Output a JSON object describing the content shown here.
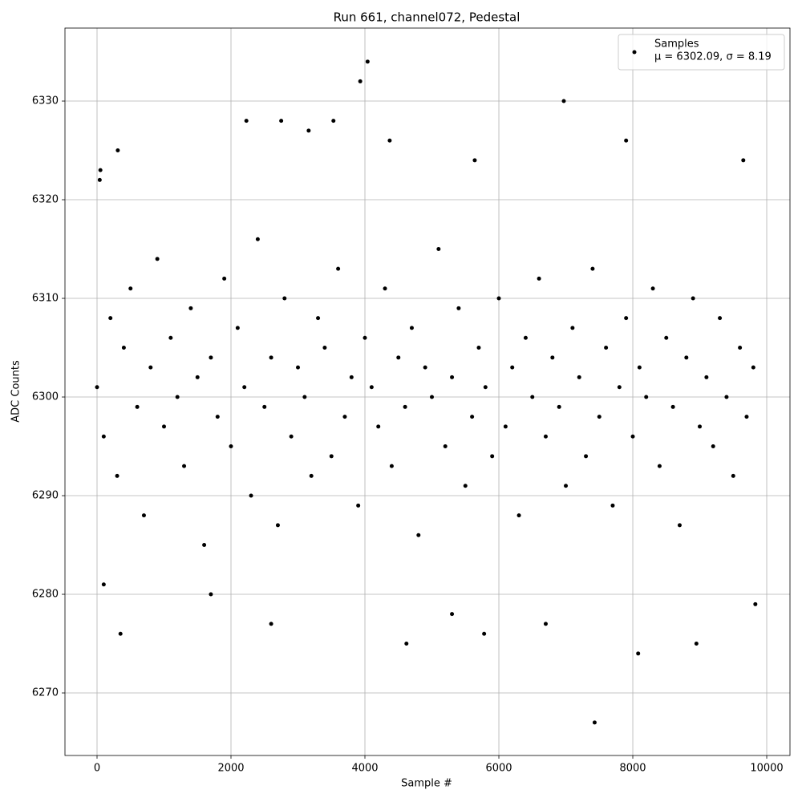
{
  "chart_data": {
    "type": "scatter",
    "title": "Run 661, channel072, Pedestal",
    "x_label": "Sample #",
    "y_label": "ADC Counts",
    "xlim": [
      -479,
      10347
    ],
    "ylim": [
      6263.66,
      6337.4
    ],
    "xticks": [
      0,
      2000,
      4000,
      6000,
      8000,
      10000
    ],
    "yticks": [
      6270,
      6280,
      6290,
      6300,
      6310,
      6320,
      6330
    ],
    "grid": true,
    "legend": "upper right",
    "legend_note": "μ = 6302.09, σ = 8.19",
    "series": [
      {
        "name": "Samples",
        "color": "#000000",
        "x": [
          0,
          100,
          200,
          300,
          400,
          500,
          600,
          700,
          800,
          900,
          1000,
          1100,
          1200,
          1300,
          1400,
          1500,
          1600,
          1700,
          1800,
          1900,
          2000,
          2100,
          2200,
          2300,
          2400,
          2500,
          2600,
          2700,
          2800,
          2900,
          3000,
          3100,
          3200,
          3300,
          3400,
          3500,
          3600,
          3700,
          3800,
          3900,
          4000,
          4100,
          4200,
          4300,
          4400,
          4500,
          4600,
          4700,
          4800,
          4900,
          5000,
          5100,
          5200,
          5300,
          5400,
          5500,
          5600,
          5700,
          5800,
          5900,
          6000,
          6100,
          6200,
          6300,
          6400,
          6500,
          6600,
          6700,
          6800,
          6900,
          7000,
          7100,
          7200,
          7300,
          7400,
          7500,
          7600,
          7700,
          7800,
          7900,
          8000,
          8100,
          8200,
          8300,
          8400,
          8500,
          8600,
          8700,
          8800,
          8900,
          9000,
          9100,
          9200,
          9300,
          9400,
          9500,
          9600,
          9700,
          9800,
          350,
          3930,
          4040,
          6970,
          7430,
          8080,
          4620,
          8950,
          2230,
          2750,
          3530,
          310,
          100,
          5780,
          50,
          9830,
          1700,
          2600,
          6700,
          7900,
          40,
          9650,
          5300,
          4370,
          5640,
          3160
        ],
        "y": [
          6301,
          6296,
          6308,
          6292,
          6305,
          6311,
          6299,
          6288,
          6303,
          6314,
          6297,
          6306,
          6300,
          6293,
          6309,
          6302,
          6285,
          6304,
          6298,
          6312,
          6295,
          6307,
          6301,
          6290,
          6316,
          6299,
          6304,
          6287,
          6310,
          6296,
          6303,
          6300,
          6292,
          6308,
          6305,
          6294,
          6313,
          6298,
          6302,
          6289,
          6306,
          6301,
          6297,
          6311,
          6293,
          6304,
          6299,
          6307,
          6286,
          6303,
          6300,
          6315,
          6295,
          6302,
          6309,
          6291,
          6298,
          6305,
          6301,
          6294,
          6310,
          6297,
          6303,
          6288,
          6306,
          6300,
          6312,
          6296,
          6304,
          6299,
          6291,
          6307,
          6302,
          6294,
          6313,
          6298,
          6305,
          6289,
          6301,
          6308,
          6296,
          6303,
          6300,
          6311,
          6293,
          6306,
          6299,
          6287,
          6304,
          6310,
          6297,
          6302,
          6295,
          6308,
          6300,
          6292,
          6305,
          6298,
          6303,
          6276,
          6332,
          6334,
          6330,
          6267,
          6274,
          6275,
          6275,
          6328,
          6328,
          6328,
          6325,
          6281,
          6276,
          6323,
          6279,
          6280,
          6277,
          6277,
          6326,
          6322,
          6324,
          6278,
          6326,
          6324,
          6327
        ]
      }
    ]
  }
}
